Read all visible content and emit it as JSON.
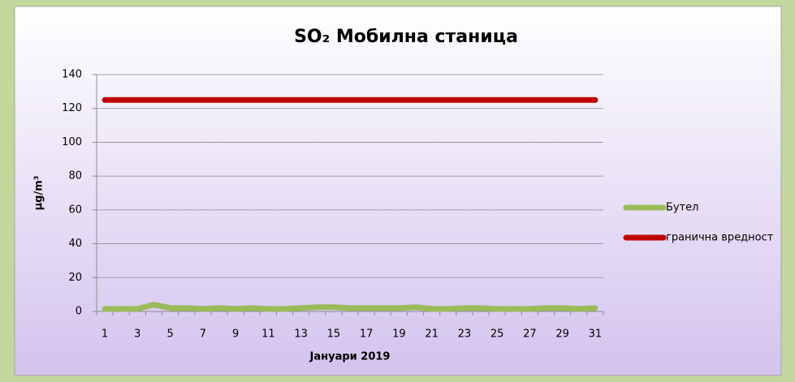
{
  "chart_data": {
    "type": "line",
    "title": "SO₂ Мобилна станица",
    "y_label": "µg/m³",
    "x_label": "Јануари 2019",
    "categories": [
      "1",
      null,
      "3",
      null,
      "5",
      null,
      "7",
      null,
      "9",
      null,
      "11",
      null,
      "13",
      null,
      "15",
      null,
      "17",
      null,
      "19",
      null,
      "21",
      null,
      "23",
      null,
      "25",
      null,
      "27",
      null,
      "29",
      null,
      "31"
    ],
    "series": [
      {
        "name": "Бутел",
        "color": "#9bbb59",
        "values": [
          1.5,
          1.5,
          1.5,
          4,
          2,
          2,
          1.5,
          2,
          1.5,
          2,
          1.5,
          1.5,
          2,
          2.5,
          2.5,
          2,
          2,
          2,
          2,
          2.5,
          1.5,
          1.5,
          2,
          2,
          1.5,
          1.5,
          1.5,
          2,
          2,
          1.5,
          2
        ]
      },
      {
        "name": "гранична вредност",
        "color": "#c00000",
        "values": [
          125,
          125,
          125,
          125,
          125,
          125,
          125,
          125,
          125,
          125,
          125,
          125,
          125,
          125,
          125,
          125,
          125,
          125,
          125,
          125,
          125,
          125,
          125,
          125,
          125,
          125,
          125,
          125,
          125,
          125,
          125
        ]
      }
    ],
    "ylim": [
      0,
      140
    ],
    "yticks": [
      0,
      20,
      40,
      60,
      80,
      100,
      120,
      140
    ],
    "grid": true,
    "legend": "right"
  }
}
